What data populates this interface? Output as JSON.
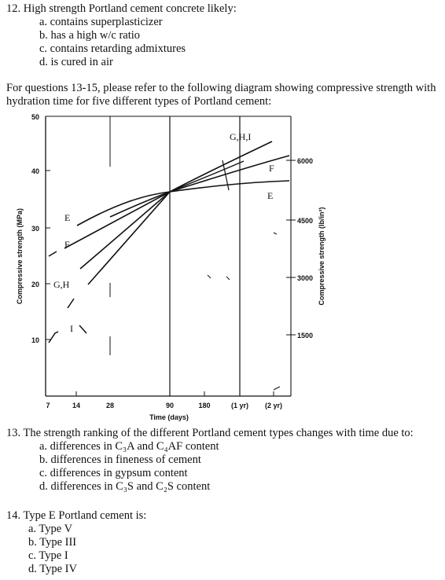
{
  "q12": {
    "stem": "12. High strength Portland cement concrete likely:",
    "options": [
      "a. contains superplasticizer",
      "b. has a high w/c ratio",
      "c. contains retarding admixtures",
      "d. is cured in air"
    ]
  },
  "intro": "For questions 13-15, please refer to the following diagram showing compressive strength with hydration time for five different types of Portland cement:",
  "chart_data": {
    "type": "line",
    "title": "",
    "xlabel": "Time (days)",
    "ylabel": "Compressive strength (MPa)",
    "y2label": "Compressive strength (lb/in²)",
    "x_ticks": [
      "7",
      "14",
      "28",
      "90",
      "180",
      "(1 yr)",
      "(2 yr)"
    ],
    "y_ticks": [
      "50",
      "40",
      "30",
      "20",
      "10"
    ],
    "y2_ticks": [
      "6000",
      "4500",
      "3000",
      "1500"
    ],
    "ylim": [
      10,
      50
    ],
    "curve_labels": [
      "G,H,I",
      "F",
      "E",
      "E",
      "F",
      "G,H",
      "I"
    ],
    "series": [
      {
        "name": "E",
        "x": [
          7,
          90,
          730
        ],
        "y": [
          28,
          36,
          37
        ]
      },
      {
        "name": "F",
        "x": [
          7,
          90,
          730
        ],
        "y": [
          24.5,
          36,
          40
        ]
      },
      {
        "name": "G,H",
        "x": [
          7,
          90,
          730
        ],
        "y": [
          20,
          36,
          42
        ]
      },
      {
        "name": "I",
        "x": [
          7,
          90,
          730
        ],
        "y": [
          14,
          36,
          45
        ]
      }
    ]
  },
  "q13": {
    "stem": "13. The strength ranking of the different Portland cement types changes with time due to:",
    "options": [
      "a. differences in C₃A and C₄AF content",
      "b. differences in fineness of cement",
      "c. differences in gypsum content",
      "d. differences in C₃S and C₂S content"
    ]
  },
  "q14": {
    "stem": "14. Type E Portland cement is:",
    "options": [
      "a. Type V",
      "b. Type III",
      "c. Type I",
      "d. Type IV"
    ]
  }
}
